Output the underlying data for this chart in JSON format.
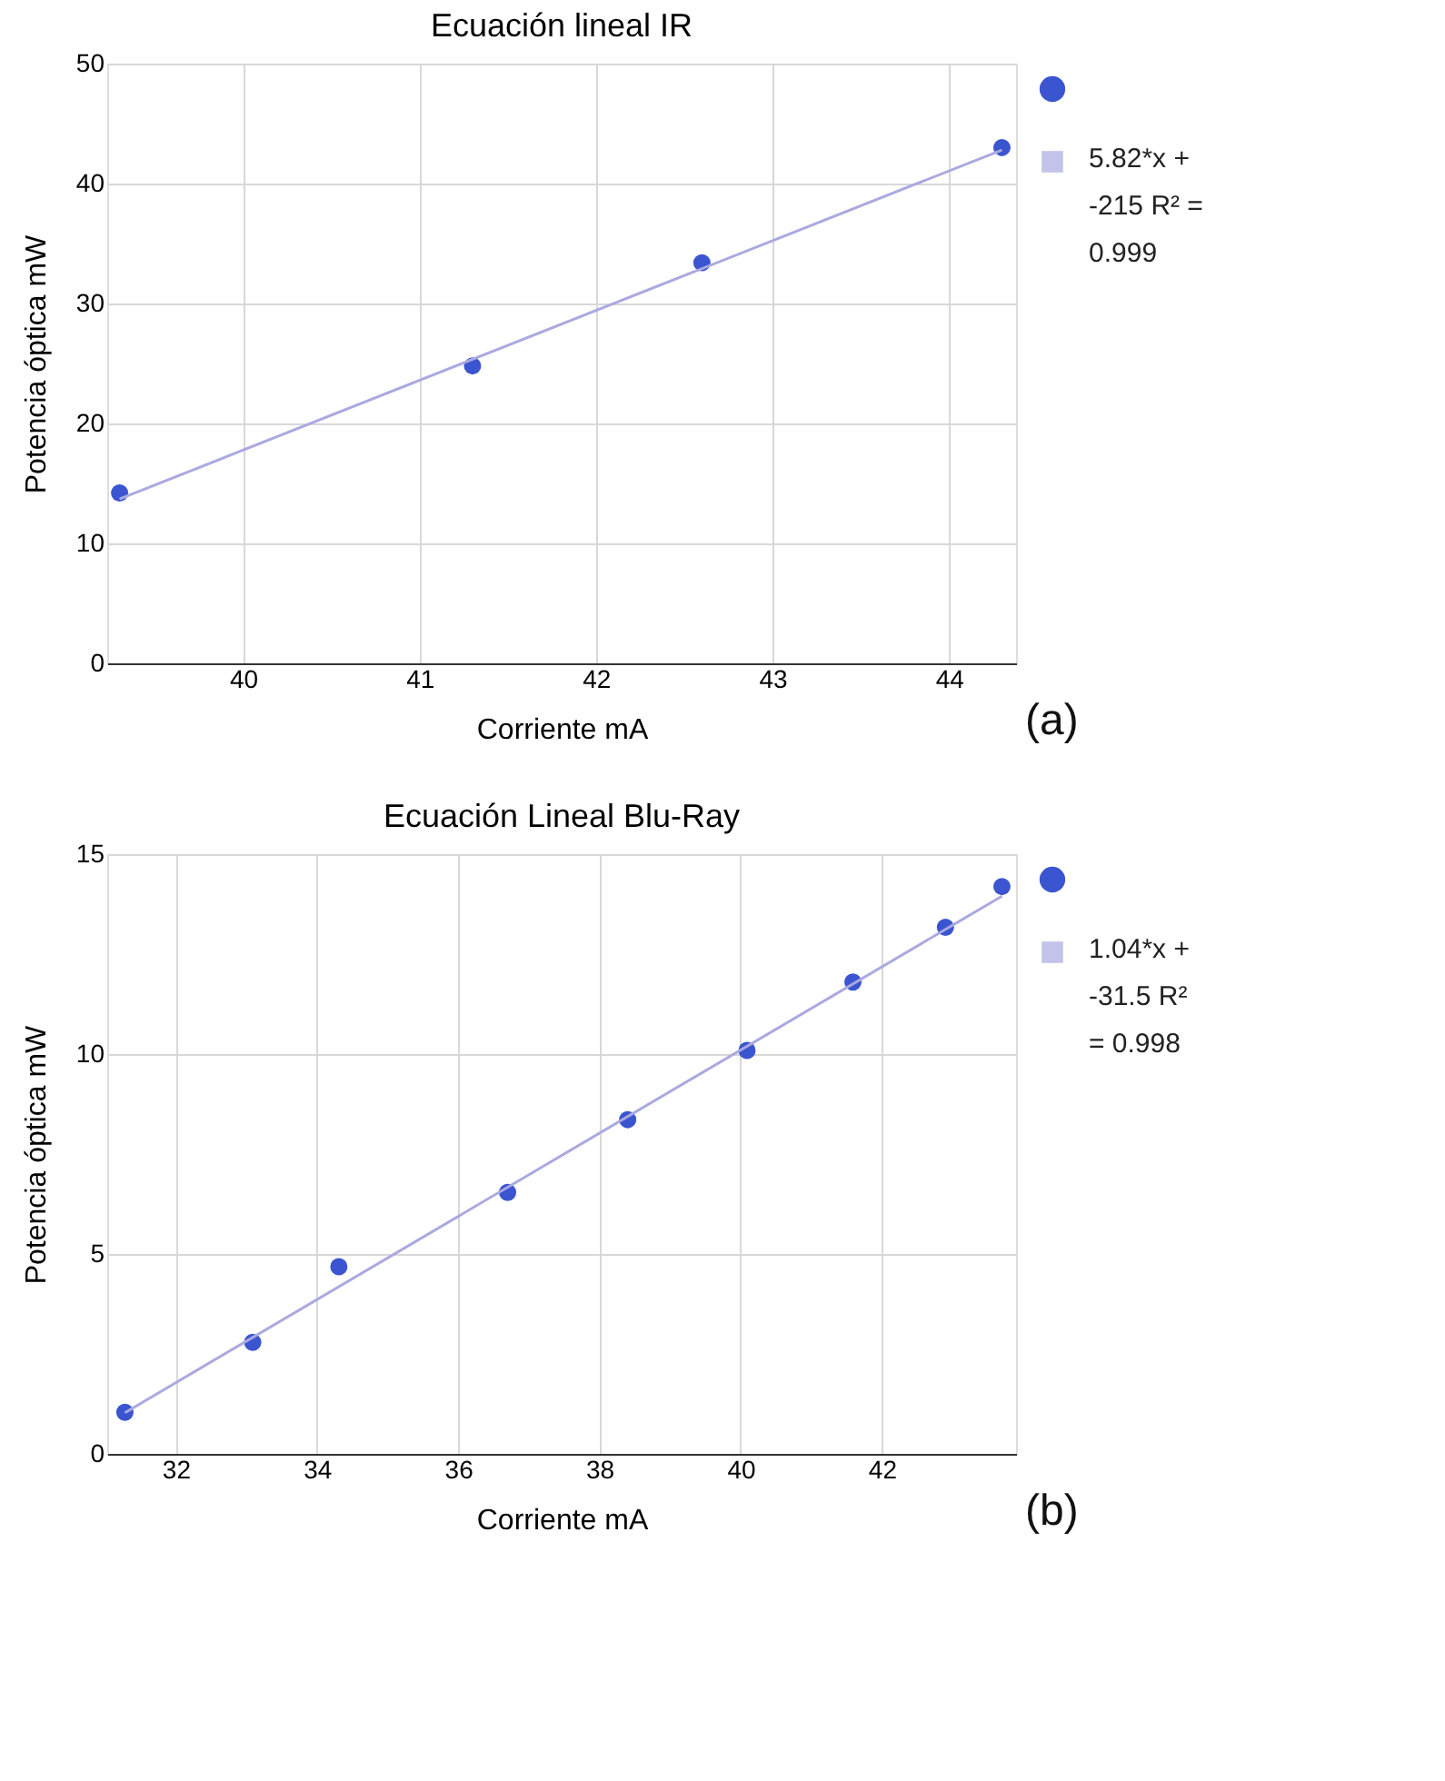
{
  "chart_data": [
    {
      "type": "scatter",
      "title": "Ecuación lineal IR",
      "xlabel": "Corriente mA",
      "ylabel": "Potencia óptica mW",
      "xlim": [
        39.23,
        44.38
      ],
      "xticks": [
        40,
        41,
        42,
        43,
        44
      ],
      "ylim": [
        0,
        50
      ],
      "yticks": [
        0,
        10,
        20,
        30,
        40,
        50
      ],
      "grid": true,
      "legend": "top right",
      "annotations": [
        "(a)"
      ],
      "series": [
        {
          "marker": "circle",
          "color": "#3b55d0",
          "x": [
            39.3,
            41.3,
            42.6,
            44.3
          ],
          "values": [
            14.2,
            24.8,
            33.4,
            43.0
          ]
        },
        {
          "type": "line",
          "name": "5.82*x + -215 R² = 0.999",
          "color": "#aaa9e0",
          "line_style": "solid",
          "x": [
            39.3,
            44.3
          ],
          "values": [
            13.7,
            42.8
          ]
        }
      ]
    },
    {
      "type": "scatter",
      "title": "Ecuación Lineal Blu-Ray",
      "xlabel": "Corriente mA",
      "ylabel": "Potencia óptica mW",
      "xlim": [
        31.03,
        43.9
      ],
      "xticks": [
        32,
        34,
        36,
        38,
        40,
        42
      ],
      "ylim": [
        0,
        15
      ],
      "yticks": [
        0,
        5,
        10,
        15
      ],
      "grid": true,
      "legend": "top right",
      "annotations": [
        "(b)"
      ],
      "series": [
        {
          "marker": "circle",
          "color": "#3b55d0",
          "x": [
            31.28,
            33.09,
            34.31,
            36.7,
            38.4,
            40.09,
            41.59,
            42.9,
            43.7
          ],
          "values": [
            1.04,
            2.79,
            4.68,
            6.54,
            8.36,
            10.09,
            11.8,
            13.17,
            14.19
          ]
        },
        {
          "type": "line",
          "name": "1.04*x + -31.5 R² = 0.998",
          "color": "#aaa9e0",
          "line_style": "solid",
          "x": [
            31.28,
            43.7
          ],
          "values": [
            1.03,
            13.95
          ]
        }
      ]
    }
  ]
}
